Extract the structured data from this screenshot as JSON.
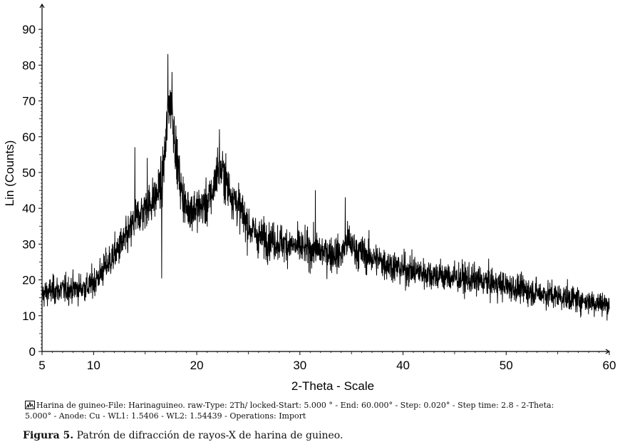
{
  "chart_data": {
    "type": "line",
    "title": "",
    "xlabel": "2-Theta - Scale",
    "ylabel": "Lin (Counts)",
    "xlim": [
      5,
      60
    ],
    "ylim": [
      0,
      97
    ],
    "x_ticks": [
      5,
      10,
      20,
      30,
      40,
      50,
      60
    ],
    "y_ticks": [
      0,
      10,
      20,
      30,
      40,
      50,
      60,
      70,
      80,
      90
    ],
    "grid": false,
    "step": 0.02,
    "series": [
      {
        "profile_x": [
          5,
          6,
          8,
          9.5,
          10.5,
          11.5,
          12.5,
          13.5,
          14,
          15,
          16,
          16.6,
          17,
          17.3,
          17.6,
          18,
          18.5,
          19,
          20,
          21,
          21.6,
          22,
          22.6,
          23,
          24,
          25,
          26,
          28,
          30,
          32,
          34,
          34.6,
          35.5,
          38,
          40,
          44,
          48,
          52,
          56,
          58,
          60
        ],
        "profile_y": [
          16,
          17,
          17.5,
          18,
          21,
          25,
          29,
          33,
          37,
          40,
          43,
          47,
          58,
          70,
          68,
          55,
          45,
          40,
          40,
          41,
          45,
          51,
          50,
          46,
          41,
          35,
          32,
          30.5,
          29,
          28,
          27,
          31,
          28,
          25,
          23,
          21,
          19.5,
          17,
          15,
          14,
          13
        ],
        "peaks": [
          {
            "x": 17.2,
            "y": 83
          },
          {
            "x": 17.6,
            "y": 78
          },
          {
            "x": 22.2,
            "y": 62
          },
          {
            "x": 14.0,
            "y": 57
          },
          {
            "x": 31.5,
            "y": 45
          },
          {
            "x": 34.4,
            "y": 43
          },
          {
            "x": 15.2,
            "y": 54
          },
          {
            "x": 16.6,
            "y": 20.5
          }
        ]
      }
    ]
  },
  "legend": {
    "line1": "Harina de guineo-File: Harinaguineo. raw-Type: 2Th/ locked-Start: 5.000 ° - End: 60.000° - Step: 0.020° - Step time: 2.8 - 2-Theta:",
    "line2": "5.000° - Anode: Cu - WL1: 1.5406 - WL2: 1.54439 - Operations: Import"
  },
  "caption": {
    "label": "Figura 5.",
    "text": " Patrón de difracción de rayos-X de harina de guineo."
  }
}
